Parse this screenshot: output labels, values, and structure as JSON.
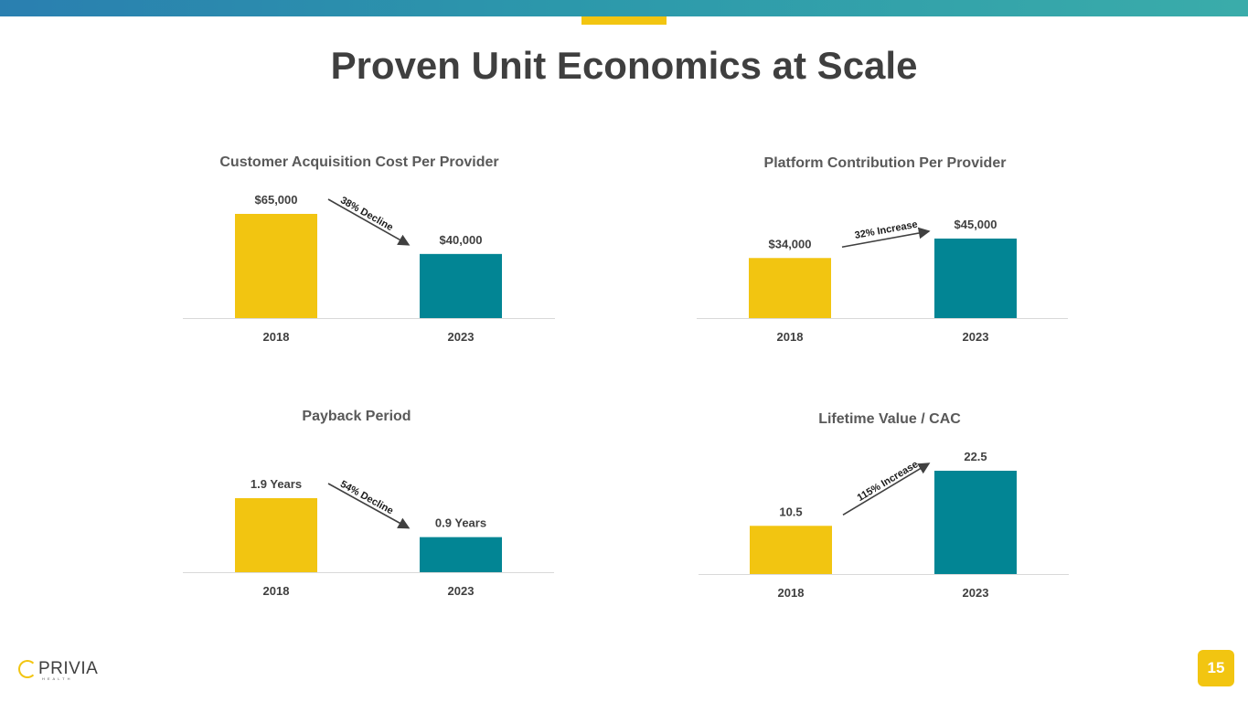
{
  "slide": {
    "title": "Proven Unit Economics at Scale",
    "page_number": "15",
    "logo_text": "PRIVIA",
    "logo_sub": "HEALTH"
  },
  "colors": {
    "yellow": "#f2c511",
    "teal": "#028594",
    "accent_bar": "#2c98ab"
  },
  "chart_data": [
    {
      "type": "bar",
      "title": "Customer Acquisition Cost Per Provider",
      "categories": [
        "2018",
        "2023"
      ],
      "values": [
        65000,
        40000
      ],
      "value_labels": [
        "$65,000",
        "$40,000"
      ],
      "annotation": "38% Decline",
      "colors": [
        "#f2c511",
        "#028594"
      ]
    },
    {
      "type": "bar",
      "title": "Platform Contribution Per Provider",
      "categories": [
        "2018",
        "2023"
      ],
      "values": [
        34000,
        45000
      ],
      "value_labels": [
        "$34,000",
        "$45,000"
      ],
      "annotation": "32% Increase",
      "colors": [
        "#f2c511",
        "#028594"
      ]
    },
    {
      "type": "bar",
      "title": "Payback Period",
      "categories": [
        "2018",
        "2023"
      ],
      "values": [
        1.9,
        0.9
      ],
      "value_labels": [
        "1.9 Years",
        "0.9 Years"
      ],
      "annotation": "54% Decline",
      "colors": [
        "#f2c511",
        "#028594"
      ]
    },
    {
      "type": "bar",
      "title": "Lifetime Value / CAC",
      "categories": [
        "2018",
        "2023"
      ],
      "values": [
        10.5,
        22.5
      ],
      "value_labels": [
        "10.5",
        "22.5"
      ],
      "annotation": "115% Increase",
      "colors": [
        "#f2c511",
        "#028594"
      ]
    }
  ]
}
